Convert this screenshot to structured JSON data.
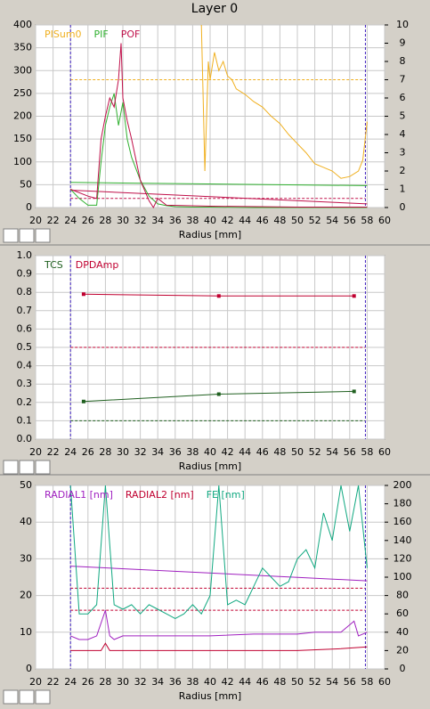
{
  "title": "Layer 0",
  "chart_data": [
    {
      "type": "line",
      "xlabel": "Radius [mm]",
      "xlim": [
        20,
        60
      ],
      "xticks": [
        20,
        22,
        24,
        26,
        28,
        30,
        32,
        34,
        36,
        38,
        40,
        42,
        44,
        46,
        48,
        50,
        52,
        54,
        56,
        58,
        60
      ],
      "ylim": [
        0,
        400
      ],
      "yticks": [
        0,
        50,
        100,
        150,
        200,
        250,
        300,
        350,
        400
      ],
      "y2lim": [
        0,
        10
      ],
      "y2ticks": [
        0,
        1,
        2,
        3,
        4,
        5,
        6,
        7,
        8,
        9,
        10
      ],
      "grid": true,
      "series": [
        {
          "name": "PISum0",
          "color": "#f0b020",
          "axis": "y2",
          "x": [
            39,
            39.2,
            39.4,
            39.6,
            39.8,
            40,
            40.5,
            41,
            41.5,
            42,
            42.5,
            43,
            44,
            45,
            46,
            47,
            48,
            49,
            50,
            51,
            52,
            53,
            54,
            55,
            56,
            57,
            57.5,
            58
          ],
          "values": [
            10,
            6,
            2,
            5,
            8,
            7,
            8.5,
            7.5,
            8,
            7.2,
            7,
            6.5,
            6.2,
            5.8,
            5.5,
            5,
            4.6,
            4,
            3.5,
            3,
            2.4,
            2.2,
            2,
            1.6,
            1.7,
            2,
            2.6,
            4.7
          ]
        },
        {
          "name": "PIF",
          "color": "#30b030",
          "x": [
            24,
            25,
            26,
            27,
            27.5,
            28,
            28.5,
            29,
            29.5,
            30,
            30.5,
            31,
            32,
            33,
            34,
            35,
            36,
            38,
            40,
            45,
            50,
            55,
            58
          ],
          "values": [
            40,
            20,
            5,
            5,
            100,
            180,
            220,
            250,
            180,
            230,
            150,
            110,
            60,
            25,
            8,
            4,
            2,
            1,
            1,
            0,
            0,
            0,
            0
          ]
        },
        {
          "name": "POF",
          "color": "#c0104a",
          "x": [
            24,
            26,
            27,
            27.5,
            28,
            28.5,
            29,
            29.5,
            29.8,
            30,
            30.5,
            31,
            32,
            33,
            33.5,
            34,
            35,
            40,
            50,
            58
          ],
          "values": [
            40,
            25,
            20,
            150,
            200,
            240,
            220,
            280,
            360,
            240,
            190,
            150,
            60,
            15,
            0,
            20,
            5,
            3,
            1,
            1
          ]
        }
      ],
      "lines": [
        {
          "color": "#30b030",
          "x": [
            24,
            58
          ],
          "values": [
            55,
            48
          ]
        },
        {
          "color": "#c0104a",
          "x": [
            24,
            58
          ],
          "values": [
            38,
            8
          ]
        }
      ],
      "hlines": [
        {
          "value": 280,
          "color": "#f0b020"
        },
        {
          "value": 20,
          "color": "#c0104a"
        }
      ],
      "vlines": [
        24,
        57.8
      ]
    },
    {
      "type": "line",
      "xlabel": "Radius [mm]",
      "xlim": [
        20,
        60
      ],
      "xticks": [
        20,
        22,
        24,
        26,
        28,
        30,
        32,
        34,
        36,
        38,
        40,
        42,
        44,
        46,
        48,
        50,
        52,
        54,
        56,
        58,
        60
      ],
      "ylim": [
        0,
        1
      ],
      "yticks": [
        {
          "value": 0,
          "label": "0.0"
        },
        0.1,
        0.2,
        0.3,
        0.4,
        0.5,
        0.6,
        0.7,
        0.8,
        0.9,
        {
          "value": 1,
          "label": "1.0"
        }
      ],
      "grid": true,
      "markers": true,
      "series": [
        {
          "name": "TCS",
          "color": "#206020",
          "x": [
            25.5,
            41,
            56.5
          ],
          "values": [
            0.205,
            0.245,
            0.26
          ]
        },
        {
          "name": "DPDAmp",
          "color": "#c00030",
          "x": [
            25.5,
            41,
            56.5
          ],
          "values": [
            0.79,
            0.78,
            0.78
          ]
        }
      ],
      "hlines": [
        {
          "value": 0.5,
          "color": "#c00030"
        },
        {
          "value": 0.1,
          "color": "#206020"
        }
      ],
      "vlines": [
        24,
        57.8
      ]
    },
    {
      "type": "line",
      "xlabel": "Radius [mm]",
      "xlim": [
        20,
        60
      ],
      "xticks": [
        20,
        22,
        24,
        26,
        28,
        30,
        32,
        34,
        36,
        38,
        40,
        42,
        44,
        46,
        48,
        50,
        52,
        54,
        56,
        58,
        60
      ],
      "ylim": [
        0,
        50
      ],
      "yticks": [
        0,
        10,
        20,
        30,
        40,
        50
      ],
      "y2lim": [
        0,
        200
      ],
      "y2ticks": [
        0,
        20,
        40,
        60,
        80,
        100,
        120,
        140,
        160,
        180,
        200
      ],
      "grid": true,
      "series": [
        {
          "name": "RADIAL1 [nm]",
          "color": "#a020c0",
          "x": [
            24,
            58
          ],
          "values": [
            28,
            24
          ]
        },
        {
          "name": "RADIAL2 [nm]",
          "color": "#c00030",
          "x": [
            24,
            27.5,
            28,
            28.5,
            30,
            40,
            50,
            55,
            58
          ],
          "values": [
            5,
            5,
            7,
            5,
            5,
            5,
            5,
            5.5,
            6
          ]
        },
        {
          "name": "FE [nm]",
          "color": "#10a880",
          "axis": "y2",
          "x": [
            24,
            25,
            26,
            27,
            28,
            29,
            30,
            31,
            32,
            33,
            34,
            35,
            36,
            37,
            38,
            39,
            40,
            41,
            42,
            43,
            44,
            45,
            46,
            47,
            48,
            49,
            50,
            51,
            52,
            53,
            54,
            55,
            56,
            57,
            58
          ],
          "values": [
            200,
            60,
            60,
            70,
            200,
            70,
            65,
            70,
            60,
            70,
            65,
            60,
            55,
            60,
            70,
            60,
            80,
            200,
            70,
            75,
            70,
            90,
            110,
            100,
            90,
            95,
            120,
            130,
            110,
            170,
            140,
            200,
            150,
            200,
            110
          ]
        }
      ],
      "lines": [
        {
          "color": "#a020c0",
          "x": [
            24,
            25,
            26,
            27,
            28,
            28.5,
            29,
            30,
            35,
            40,
            45,
            50,
            52,
            55,
            56.5,
            57,
            58
          ],
          "values": [
            9,
            8,
            8,
            9,
            16,
            9,
            8,
            9,
            9,
            9,
            9.5,
            9.5,
            10,
            10,
            13,
            9,
            10
          ]
        }
      ],
      "hlines": [
        {
          "value": 22,
          "color": "#c00030"
        },
        {
          "value": 16,
          "color": "#c00030"
        }
      ],
      "vlines": [
        24,
        57.8
      ]
    }
  ]
}
